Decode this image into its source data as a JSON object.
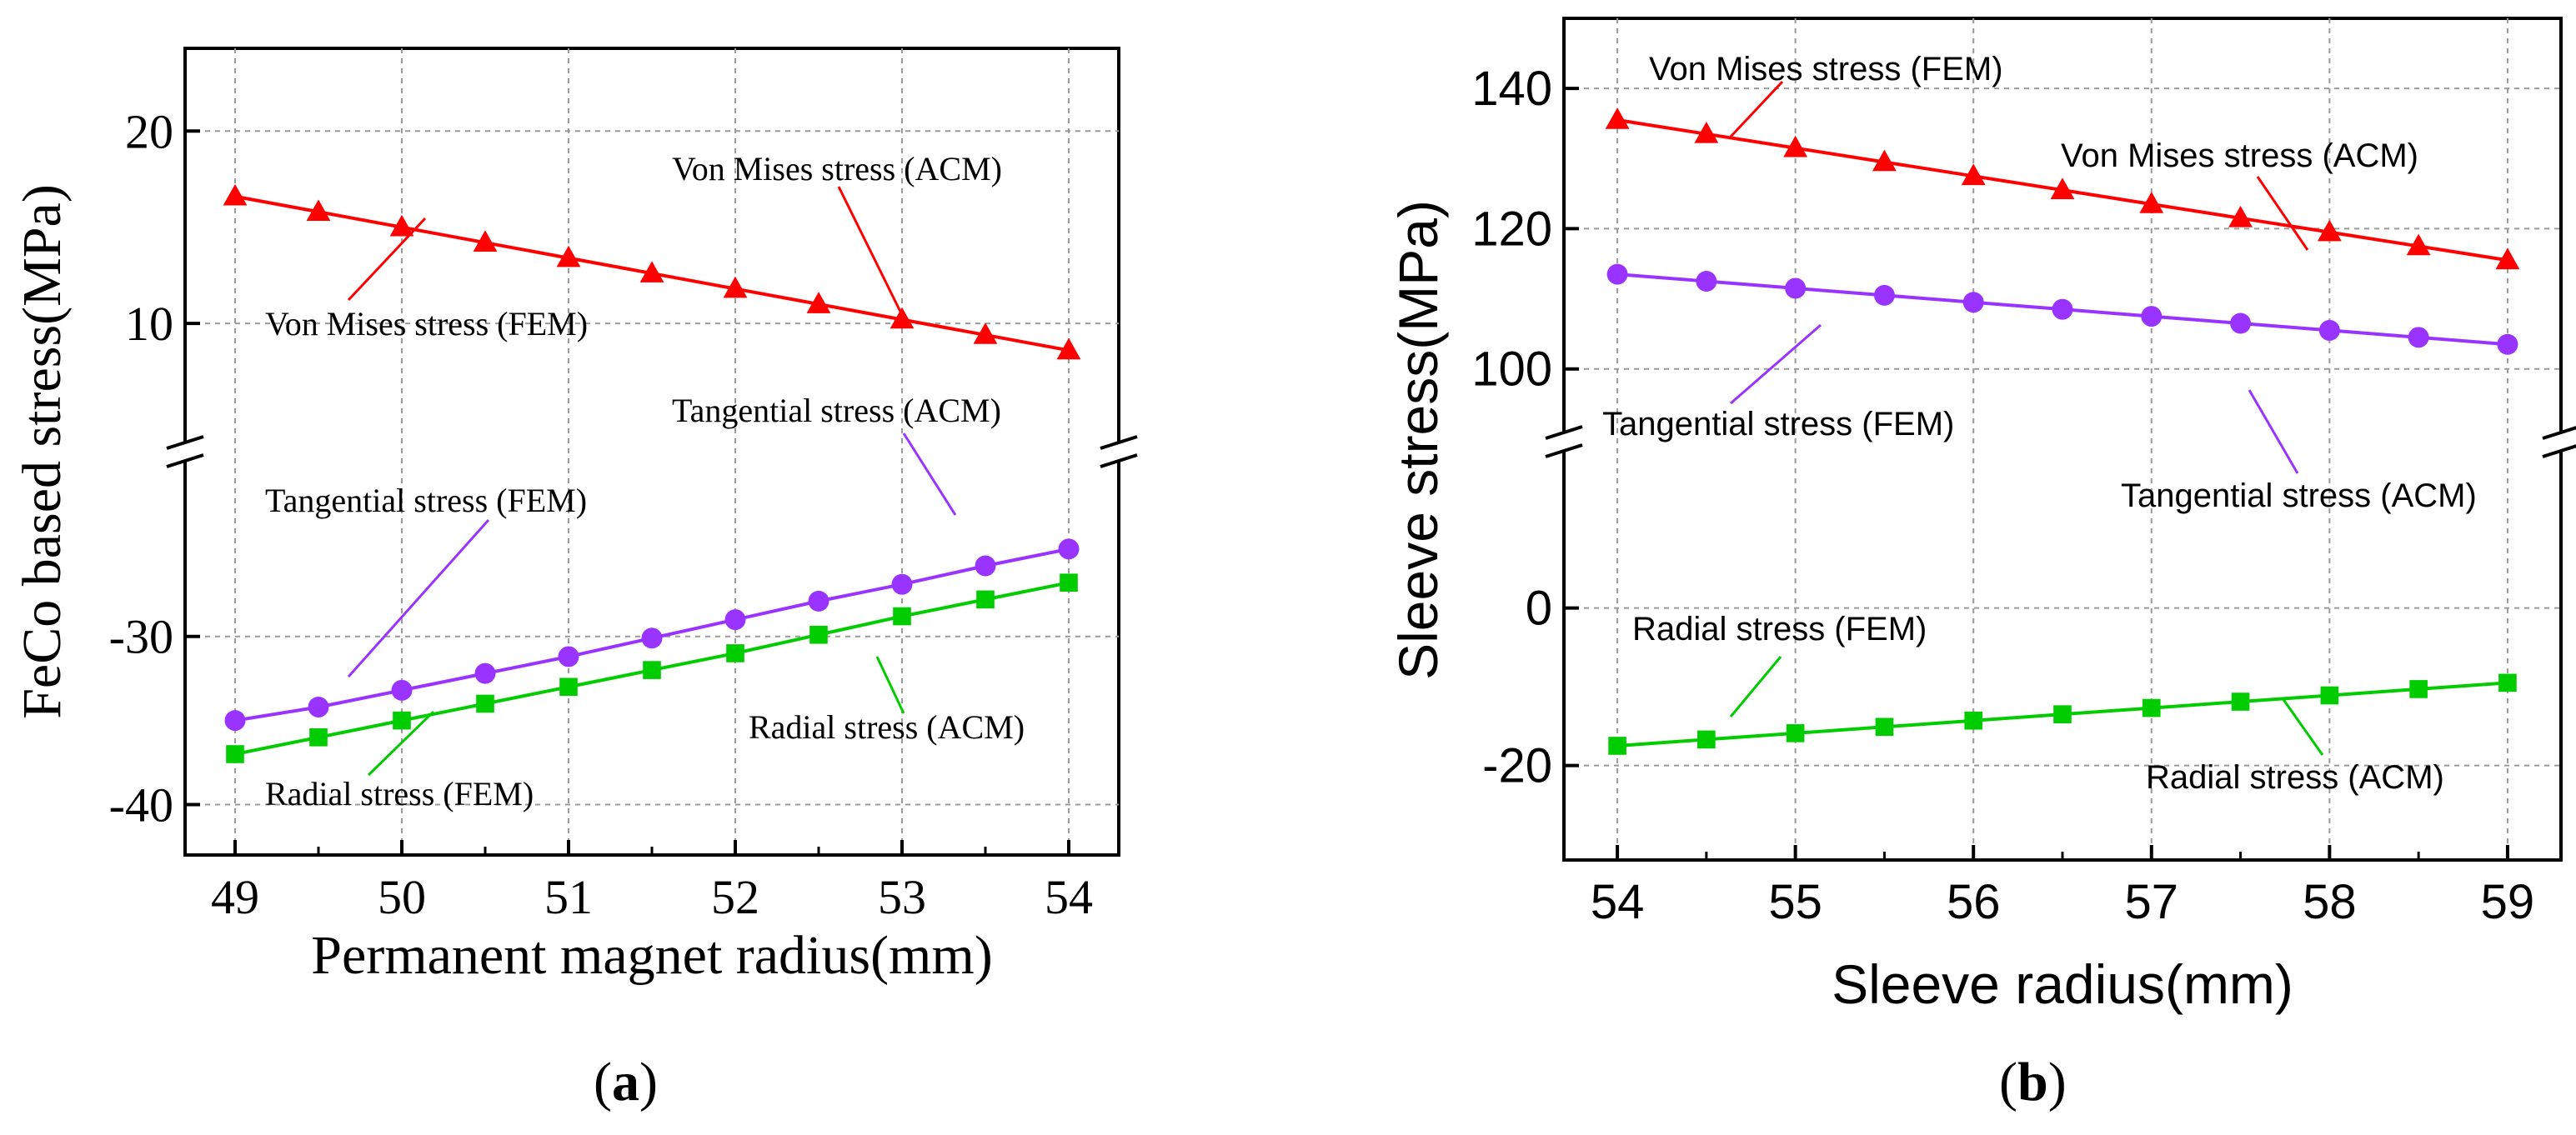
{
  "chart_data": [
    {
      "type": "line",
      "panel": "a",
      "caption_open": "(",
      "caption_letter": "a",
      "caption_close": ")",
      "xlabel": "Permanent magnet radius(mm)",
      "ylabel": "FeCo based stress(MPa)",
      "x": [
        49,
        49.5,
        50,
        50.5,
        51,
        51.5,
        52,
        52.5,
        53,
        53.5,
        54
      ],
      "xlim": [
        48.7,
        54.3
      ],
      "xticks": [
        "49",
        "50",
        "51",
        "52",
        "53",
        "54"
      ],
      "xtick_values": [
        49,
        50,
        51,
        52,
        53,
        54
      ],
      "broken_axis": true,
      "ylim_upper": [
        4.2,
        24.3
      ],
      "yticks_upper": [
        "20",
        "10"
      ],
      "ytick_values_upper": [
        20,
        10
      ],
      "ylim_lower": [
        -43,
        -20
      ],
      "yticks_lower": [
        "-30",
        "-40"
      ],
      "ytick_values_lower": [
        -30,
        -40
      ],
      "series": [
        {
          "name": "Von Mises stress",
          "marker": "triangle",
          "color": "#ff0000",
          "segment": "upper",
          "values": [
            16.6,
            15.8,
            15.0,
            14.2,
            13.4,
            12.6,
            11.8,
            11.0,
            10.2,
            9.4,
            8.6
          ]
        },
        {
          "name": "Tangential stress",
          "marker": "circle",
          "color": "#9933ff",
          "segment": "lower",
          "values": [
            -35.0,
            -34.2,
            -33.2,
            -32.2,
            -31.2,
            -30.1,
            -29.0,
            -27.9,
            -26.9,
            -25.8,
            -24.8
          ]
        },
        {
          "name": "Radial stress",
          "marker": "square",
          "color": "#00cc00",
          "segment": "lower",
          "values": [
            -37.0,
            -36.0,
            -35.0,
            -34.0,
            -33.0,
            -32.0,
            -31.0,
            -29.9,
            -28.8,
            -27.8,
            -26.8
          ]
        }
      ],
      "annotations": [
        {
          "text": "Von Mises stress (ACM)",
          "color": "#ff0000"
        },
        {
          "text": "Von Mises stress (FEM)",
          "color": "#ff0000"
        },
        {
          "text": "Tangential stress (ACM)",
          "color": "#9933ff"
        },
        {
          "text": "Tangential stress (FEM)",
          "color": "#9933ff"
        },
        {
          "text": "Radial stress (ACM)",
          "color": "#00cc00"
        },
        {
          "text": "Radial stress (FEM)",
          "color": "#00cc00"
        }
      ]
    },
    {
      "type": "line",
      "panel": "b",
      "caption_open": "(",
      "caption_letter": "b",
      "caption_close": ")",
      "xlabel": "Sleeve radius(mm)",
      "ylabel": "Sleeve stress(MPa)",
      "x": [
        54,
        54.5,
        55,
        55.5,
        56,
        56.5,
        57,
        57.5,
        58,
        58.5,
        59
      ],
      "xlim": [
        53.7,
        59.3
      ],
      "xticks": [
        "54",
        "55",
        "56",
        "57",
        "58",
        "59"
      ],
      "xtick_values": [
        54,
        55,
        56,
        57,
        58,
        59
      ],
      "broken_axis": true,
      "ylim_upper": [
        92,
        150
      ],
      "yticks_upper": [
        "140",
        "120",
        "100"
      ],
      "ytick_values_upper": [
        140,
        120,
        100
      ],
      "ylim_lower": [
        -32,
        19
      ],
      "yticks_lower": [
        "0",
        "-20"
      ],
      "ytick_values_lower": [
        0,
        -20
      ],
      "series": [
        {
          "name": "Von Mises stress",
          "marker": "triangle",
          "color": "#ff0000",
          "segment": "upper",
          "values": [
            135.5,
            133.5,
            131.5,
            129.5,
            127.5,
            125.5,
            123.5,
            121.5,
            119.5,
            117.5,
            115.5
          ]
        },
        {
          "name": "Tangential stress",
          "marker": "circle",
          "color": "#9933ff",
          "segment": "upper",
          "values": [
            113.5,
            112.5,
            111.5,
            110.5,
            109.5,
            108.5,
            107.5,
            106.5,
            105.5,
            104.5,
            103.5
          ]
        },
        {
          "name": "Radial stress",
          "marker": "square",
          "color": "#00cc00",
          "segment": "lower",
          "values": [
            -17.5,
            -16.7,
            -15.9,
            -15.1,
            -14.3,
            -13.5,
            -12.7,
            -11.9,
            -11.1,
            -10.3,
            -9.5
          ]
        }
      ],
      "annotations": [
        {
          "text": "Von Mises stress (FEM)",
          "color": "#ff0000"
        },
        {
          "text": "Von Mises stress (ACM)",
          "color": "#ff0000"
        },
        {
          "text": "Tangential stress (FEM)",
          "color": "#9933ff"
        },
        {
          "text": "Tangential stress (ACM)",
          "color": "#9933ff"
        },
        {
          "text": "Radial stress (FEM)",
          "color": "#00cc00"
        },
        {
          "text": "Radial stress (ACM)",
          "color": "#00cc00"
        }
      ]
    }
  ]
}
